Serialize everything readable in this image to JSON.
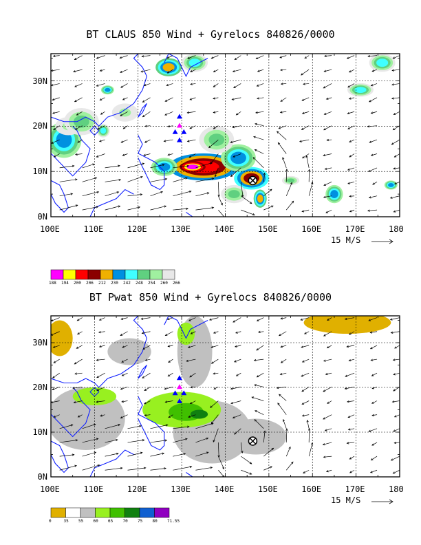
{
  "chart_data": [
    {
      "type": "heatmap",
      "title": "BT CLAUS 850 Wind + Gyrelocs 840826/0000",
      "x_tick_labels": [
        "100E",
        "110E",
        "120E",
        "130E",
        "140E",
        "150E",
        "160E",
        "170E",
        "180"
      ],
      "y_tick_labels": [
        "0N",
        "10N",
        "20N",
        "30N"
      ],
      "xlim": [
        100,
        180
      ],
      "ylim": [
        0,
        36
      ],
      "grid": true,
      "vector_reference": "15 M/S",
      "legend_labels": [
        "188",
        "194",
        "200",
        "206",
        "212",
        "230",
        "242",
        "248",
        "254",
        "260",
        "266"
      ],
      "legend_colors": [
        "#ff00ff",
        "#ffff00",
        "#ff0000",
        "#8b0000",
        "#f0b000",
        "#0090e0",
        "#40ffff",
        "#60d080",
        "#a0f0a0",
        "#e8e8e8"
      ],
      "triangle_markers": [
        {
          "lon": 129.5,
          "lat": 22.2,
          "color": "#0000ff"
        },
        {
          "lon": 129.5,
          "lat": 20.2,
          "color": "#ff00ff"
        },
        {
          "lon": 128.5,
          "lat": 18.8,
          "color": "#0000ff"
        },
        {
          "lon": 130.5,
          "lat": 18.8,
          "color": "#0000ff"
        },
        {
          "lon": 129.5,
          "lat": 17.0,
          "color": "#0000ff"
        }
      ],
      "storm_center": {
        "lon": 146.3,
        "lat": 8.0
      },
      "cloud_features": [
        {
          "lon": 135,
          "lat": 11,
          "rx": 8,
          "ry": 3,
          "level": 2
        },
        {
          "lon": 132.5,
          "lat": 11,
          "rx": 3,
          "ry": 1.2,
          "level": 0
        },
        {
          "lon": 146,
          "lat": 8.5,
          "rx": 4,
          "ry": 2.5,
          "level": 3
        },
        {
          "lon": 143,
          "lat": 13,
          "rx": 4,
          "ry": 3,
          "level": 5
        },
        {
          "lon": 126,
          "lat": 11,
          "rx": 3,
          "ry": 2,
          "level": 5
        },
        {
          "lon": 103,
          "lat": 17,
          "rx": 4,
          "ry": 4,
          "level": 5
        },
        {
          "lon": 104,
          "lat": 20,
          "rx": 3,
          "ry": 2,
          "level": 8
        },
        {
          "lon": 107,
          "lat": 21,
          "rx": 4,
          "ry": 3,
          "level": 7
        },
        {
          "lon": 112,
          "lat": 19,
          "rx": 1.5,
          "ry": 1.5,
          "level": 6
        },
        {
          "lon": 117,
          "lat": 23,
          "rx": 3,
          "ry": 2,
          "level": 8
        },
        {
          "lon": 113,
          "lat": 28,
          "rx": 1.5,
          "ry": 1,
          "level": 5
        },
        {
          "lon": 127,
          "lat": 33,
          "rx": 3,
          "ry": 2,
          "level": 4
        },
        {
          "lon": 133,
          "lat": 34,
          "rx": 3,
          "ry": 2,
          "level": 6
        },
        {
          "lon": 176,
          "lat": 34,
          "rx": 3,
          "ry": 2,
          "level": 6
        },
        {
          "lon": 171,
          "lat": 28,
          "rx": 3,
          "ry": 1.5,
          "level": 6
        },
        {
          "lon": 138,
          "lat": 17,
          "rx": 4,
          "ry": 3,
          "level": 7
        },
        {
          "lon": 142,
          "lat": 5,
          "rx": 3,
          "ry": 2,
          "level": 7
        },
        {
          "lon": 148,
          "lat": 4,
          "rx": 1.5,
          "ry": 2,
          "level": 4
        },
        {
          "lon": 165,
          "lat": 5,
          "rx": 2,
          "ry": 2,
          "level": 5
        },
        {
          "lon": 155,
          "lat": 8,
          "rx": 2,
          "ry": 1,
          "level": 7
        },
        {
          "lon": 178,
          "lat": 7,
          "rx": 1.5,
          "ry": 1,
          "level": 5
        }
      ]
    },
    {
      "type": "heatmap",
      "title": "BT Pwat 850 Wind + Gyrelocs 840826/0000",
      "x_tick_labels": [
        "100E",
        "110E",
        "120E",
        "130E",
        "140E",
        "150E",
        "160E",
        "170E",
        "180"
      ],
      "y_tick_labels": [
        "0N",
        "10N",
        "20N",
        "30N"
      ],
      "xlim": [
        100,
        180
      ],
      "ylim": [
        0,
        36
      ],
      "grid": true,
      "vector_reference": "15 M/S",
      "legend_labels": [
        "0",
        "35",
        "55",
        "60",
        "65",
        "70",
        "75",
        "80",
        "71.55"
      ],
      "legend_colors": [
        "#e0b000",
        "#ffffff",
        "#c0c0c0",
        "#98f020",
        "#40c000",
        "#108010",
        "#1060d0",
        "#9000c0"
      ],
      "triangle_markers": [
        {
          "lon": 129.5,
          "lat": 22.2,
          "color": "#0000ff"
        },
        {
          "lon": 129.5,
          "lat": 20.2,
          "color": "#ff00ff"
        },
        {
          "lon": 128.5,
          "lat": 18.8,
          "color": "#0000ff"
        },
        {
          "lon": 130.5,
          "lat": 18.8,
          "color": "#0000ff"
        },
        {
          "lon": 129.5,
          "lat": 17.0,
          "color": "#0000ff"
        }
      ],
      "storm_center": {
        "lon": 146.3,
        "lat": 8.0
      },
      "pwat_features": [
        {
          "lon": 102,
          "lat": 31,
          "rx": 3,
          "ry": 4,
          "level": 0
        },
        {
          "lon": 168,
          "lat": 34.5,
          "rx": 10,
          "ry": 2.5,
          "level": 0
        },
        {
          "lon": 108,
          "lat": 13,
          "rx": 9,
          "ry": 7,
          "level": 2
        },
        {
          "lon": 118,
          "lat": 28,
          "rx": 5,
          "ry": 3,
          "level": 2
        },
        {
          "lon": 137,
          "lat": 10,
          "rx": 9,
          "ry": 7,
          "level": 2
        },
        {
          "lon": 147,
          "lat": 9,
          "rx": 7,
          "ry": 4,
          "level": 2
        },
        {
          "lon": 133,
          "lat": 28,
          "rx": 4,
          "ry": 8,
          "level": 2
        },
        {
          "lon": 130,
          "lat": 15,
          "rx": 9,
          "ry": 4,
          "level": 3
        },
        {
          "lon": 110,
          "lat": 18,
          "rx": 5,
          "ry": 2,
          "level": 3
        },
        {
          "lon": 131,
          "lat": 32,
          "rx": 2,
          "ry": 2.5,
          "level": 3
        },
        {
          "lon": 131,
          "lat": 14.5,
          "rx": 4,
          "ry": 2,
          "level": 4
        },
        {
          "lon": 134,
          "lat": 14,
          "rx": 2,
          "ry": 1,
          "level": 5
        }
      ]
    }
  ]
}
